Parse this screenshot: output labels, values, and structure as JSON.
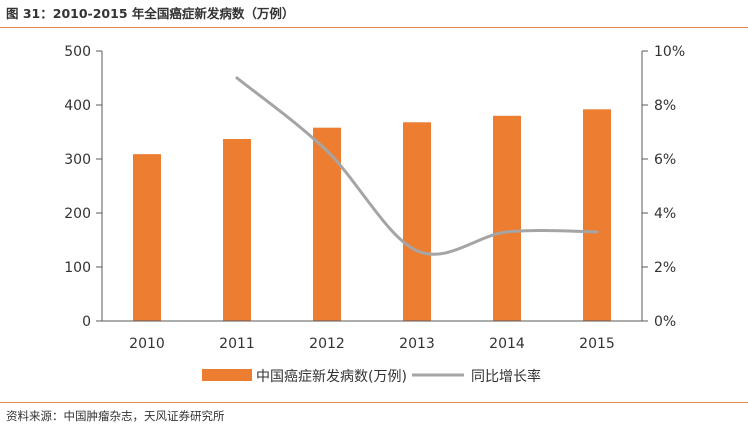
{
  "figure": {
    "title": "图 31：2010-2015 年全国癌症新发病数（万例）",
    "source": "资料来源：中国肿瘤杂志，天风证券研究所"
  },
  "colors": {
    "bar": "#ed7d31",
    "line": "#a5a5a5",
    "rule": "#e58a4a",
    "axis": "#595959"
  },
  "chart_data": {
    "type": "bar",
    "categories": [
      "2010",
      "2011",
      "2012",
      "2013",
      "2014",
      "2015"
    ],
    "series": [
      {
        "name": "中国癌症新发病数(万例)",
        "type": "bar",
        "axis": "left",
        "values": [
          309,
          337,
          358,
          368,
          380,
          392
        ]
      },
      {
        "name": "同比增长率",
        "type": "line",
        "axis": "right",
        "smooth": true,
        "values": [
          null,
          0.09,
          0.063,
          0.026,
          0.033,
          0.033
        ]
      }
    ],
    "y_left": {
      "range": [
        0,
        500
      ],
      "ticks": [
        0,
        100,
        200,
        300,
        400,
        500
      ],
      "tick_labels": [
        "0",
        "100",
        "200",
        "300",
        "400",
        "500"
      ]
    },
    "y_right": {
      "range": [
        0,
        0.1
      ],
      "ticks": [
        0,
        0.02,
        0.04,
        0.06,
        0.08,
        0.1
      ],
      "tick_labels": [
        "0%",
        "2%",
        "4%",
        "6%",
        "8%",
        "10%"
      ]
    },
    "grid": false,
    "legend_position": "bottom"
  }
}
